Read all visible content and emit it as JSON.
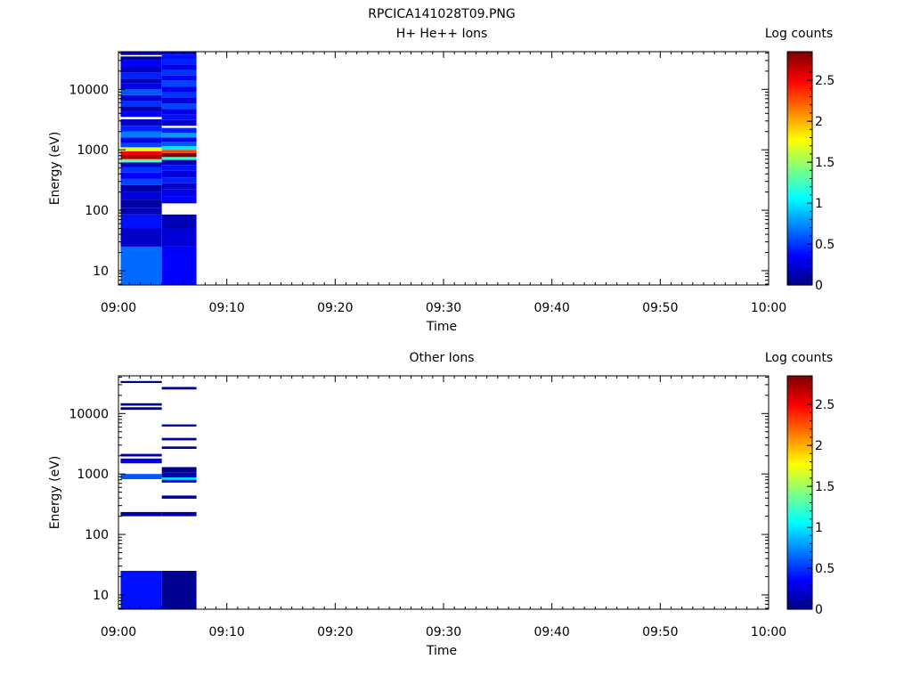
{
  "figure": {
    "title": "RPCICA141028T09.PNG"
  },
  "colorscale": {
    "stops": [
      "#00007f",
      "#0000ff",
      "#007fff",
      "#00ffff",
      "#7fff7f",
      "#ffff00",
      "#ff7f00",
      "#ff0000",
      "#7f0000"
    ],
    "range": [
      0,
      2.85
    ]
  },
  "chart_data": [
    {
      "type": "heatmap",
      "title": "H+ He++ Ions",
      "xlabel": "Time",
      "ylabel": "Energy (eV)",
      "x_ticks": [
        "09:00",
        "09:10",
        "09:20",
        "09:30",
        "09:40",
        "09:50",
        "10:00"
      ],
      "x_range_minutes": [
        0,
        60
      ],
      "y_scale": "log",
      "y_ticks": [
        "10",
        "100",
        "1000",
        "10000"
      ],
      "y_tick_values": [
        10,
        100,
        1000,
        10000
      ],
      "y_range": [
        5.8,
        42000
      ],
      "colorbar_label": "Log counts",
      "colorbar_ticks": [
        "0",
        "0.5",
        "1",
        "1.5",
        "2",
        "2.5"
      ],
      "colorbar_tick_values": [
        0,
        0.5,
        1,
        1.5,
        2,
        2.5
      ],
      "colorbar_range": [
        0,
        2.85
      ],
      "columns": [
        {
          "t_start": 0.2,
          "t_end": 4.0,
          "cells": [
            [
              5.8,
              25,
              0.65
            ],
            [
              25,
              50,
              0.2
            ],
            [
              50,
              85,
              0.4
            ],
            [
              85,
              110,
              0.15
            ],
            [
              110,
              150,
              0.1
            ],
            [
              150,
              200,
              0.25
            ],
            [
              200,
              260,
              0.12
            ],
            [
              260,
              330,
              0.55
            ],
            [
              330,
              420,
              0.35
            ],
            [
              420,
              520,
              0.5
            ],
            [
              520,
              620,
              0.2
            ],
            [
              620,
              700,
              1.3
            ],
            [
              700,
              820,
              2.7
            ],
            [
              820,
              950,
              2.5
            ],
            [
              950,
              1100,
              1.7
            ],
            [
              1100,
              1300,
              0.55
            ],
            [
              1300,
              1600,
              0.3
            ],
            [
              1600,
              2000,
              0.7
            ],
            [
              2000,
              2500,
              0.45
            ],
            [
              2500,
              3200,
              0.2
            ],
            [
              3500,
              4200,
              0.35
            ],
            [
              4200,
              5200,
              0.15
            ],
            [
              5200,
              6500,
              0.5
            ],
            [
              6500,
              8000,
              0.25
            ],
            [
              8000,
              10000,
              0.6
            ],
            [
              10000,
              12500,
              0.3
            ],
            [
              12500,
              15000,
              0.15
            ],
            [
              15000,
              19000,
              0.45
            ],
            [
              19000,
              24000,
              0.2
            ],
            [
              24000,
              30000,
              0.35
            ],
            [
              30000,
              35000,
              0.1
            ],
            [
              37000,
              42000,
              0.2
            ]
          ]
        },
        {
          "t_start": 4.0,
          "t_end": 7.2,
          "cells": [
            [
              5.8,
              25,
              0.35
            ],
            [
              25,
              50,
              0.25
            ],
            [
              50,
              85,
              0.15
            ],
            [
              130,
              170,
              0.35
            ],
            [
              170,
              220,
              0.3
            ],
            [
              220,
              280,
              0.2
            ],
            [
              280,
              350,
              0.45
            ],
            [
              350,
              450,
              0.25
            ],
            [
              450,
              560,
              0.4
            ],
            [
              560,
              680,
              0.15
            ],
            [
              680,
              760,
              1.2
            ],
            [
              760,
              880,
              2.85
            ],
            [
              880,
              1000,
              2.3
            ],
            [
              1000,
              1150,
              1.0
            ],
            [
              1150,
              1350,
              0.6
            ],
            [
              1350,
              1600,
              0.3
            ],
            [
              1600,
              1900,
              0.8
            ],
            [
              1900,
              2300,
              0.45
            ],
            [
              2500,
              3100,
              0.2
            ],
            [
              3100,
              3800,
              0.4
            ],
            [
              3800,
              4700,
              0.3
            ],
            [
              4700,
              5800,
              0.55
            ],
            [
              5800,
              7200,
              0.25
            ],
            [
              7200,
              9000,
              0.5
            ],
            [
              9000,
              11000,
              0.3
            ],
            [
              11000,
              14000,
              0.55
            ],
            [
              14000,
              17000,
              0.35
            ],
            [
              17000,
              21000,
              0.5
            ],
            [
              21000,
              26000,
              0.3
            ],
            [
              26000,
              32000,
              0.45
            ],
            [
              32000,
              37000,
              0.4
            ],
            [
              37000,
              42000,
              0.3
            ]
          ]
        }
      ]
    },
    {
      "type": "heatmap",
      "title": "Other Ions",
      "xlabel": "Time",
      "ylabel": "Energy (eV)",
      "x_ticks": [
        "09:00",
        "09:10",
        "09:20",
        "09:30",
        "09:40",
        "09:50",
        "10:00"
      ],
      "x_range_minutes": [
        0,
        60
      ],
      "y_scale": "log",
      "y_ticks": [
        "10",
        "100",
        "1000",
        "10000"
      ],
      "y_tick_values": [
        10,
        100,
        1000,
        10000
      ],
      "y_range": [
        5.8,
        42000
      ],
      "colorbar_label": "Log counts",
      "colorbar_ticks": [
        "0",
        "0.5",
        "1",
        "1.5",
        "2",
        "2.5"
      ],
      "colorbar_tick_values": [
        0,
        0.5,
        1,
        1.5,
        2,
        2.5
      ],
      "colorbar_range": [
        0,
        2.85
      ],
      "columns": [
        {
          "t_start": 0.2,
          "t_end": 4.0,
          "cells": [
            [
              5.8,
              25,
              0.4
            ],
            [
              200,
              235,
              0.1
            ],
            [
              820,
              1000,
              0.6
            ],
            [
              1500,
              1800,
              0.3
            ],
            [
              1950,
              2150,
              0.1
            ],
            [
              11500,
              12700,
              0.05
            ],
            [
              13500,
              14800,
              0.05
            ],
            [
              32000,
              34500,
              0.05
            ]
          ]
        },
        {
          "t_start": 4.0,
          "t_end": 7.2,
          "cells": [
            [
              5.8,
              25,
              0.05
            ],
            [
              200,
              235,
              0.1
            ],
            [
              390,
              440,
              0.1
            ],
            [
              720,
              800,
              0.3
            ],
            [
              800,
              880,
              0.95
            ],
            [
              880,
              1050,
              0.15
            ],
            [
              1050,
              1300,
              0.05
            ],
            [
              2600,
              2850,
              0.05
            ],
            [
              3600,
              3950,
              0.05
            ],
            [
              6100,
              6600,
              0.05
            ],
            [
              25000,
              27500,
              0.05
            ]
          ]
        }
      ]
    }
  ]
}
